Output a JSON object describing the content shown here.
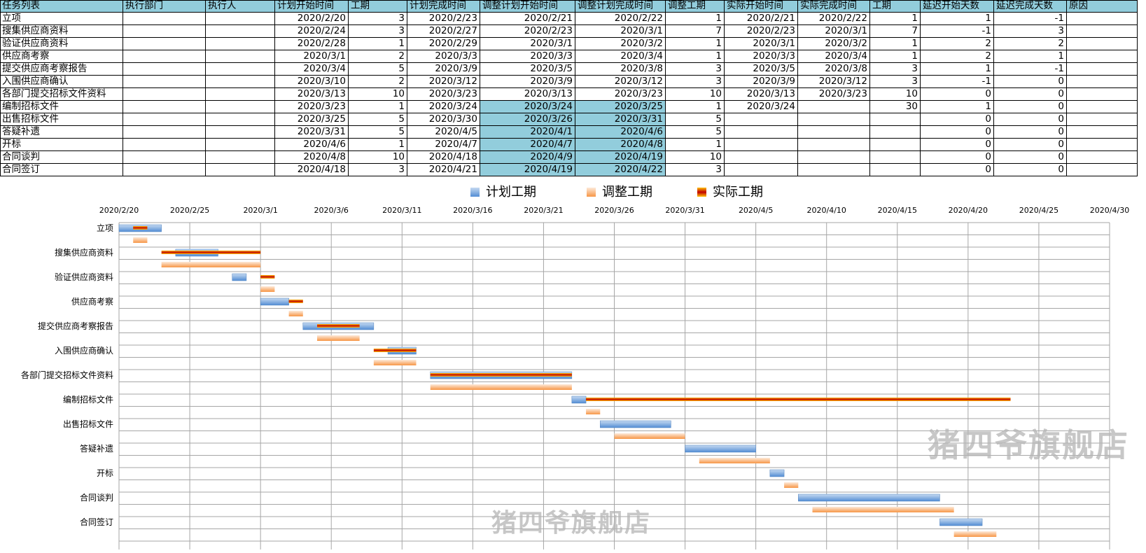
{
  "table": {
    "headers": [
      "任务列表",
      "执行部门",
      "执行人",
      "计划开始时间",
      "工期",
      "计划完成时间",
      "调整计划开始时间",
      "调整计划完成时间",
      "调整工期",
      "实际开始时间",
      "实际完成时间",
      "工期",
      "延迟开始天数",
      "延迟完成天数",
      "原因"
    ],
    "rows": [
      [
        "立项",
        "",
        "",
        "2020/2/20",
        "3",
        "2020/2/23",
        "2020/2/21",
        "2020/2/22",
        "1",
        "2020/2/21",
        "2020/2/22",
        "1",
        "1",
        "-1",
        ""
      ],
      [
        "搜集供应商资料",
        "",
        "",
        "2020/2/24",
        "3",
        "2020/2/27",
        "2020/2/23",
        "2020/3/1",
        "7",
        "2020/2/23",
        "2020/3/1",
        "7",
        "-1",
        "3",
        ""
      ],
      [
        "验证供应商资料",
        "",
        "",
        "2020/2/28",
        "1",
        "2020/2/29",
        "2020/3/1",
        "2020/3/2",
        "1",
        "2020/3/1",
        "2020/3/2",
        "1",
        "2",
        "2",
        ""
      ],
      [
        "供应商考察",
        "",
        "",
        "2020/3/1",
        "2",
        "2020/3/3",
        "2020/3/3",
        "2020/3/4",
        "1",
        "2020/3/3",
        "2020/3/4",
        "1",
        "2",
        "1",
        ""
      ],
      [
        "提交供应商考察报告",
        "",
        "",
        "2020/3/4",
        "5",
        "2020/3/9",
        "2020/3/5",
        "2020/3/8",
        "3",
        "2020/3/5",
        "2020/3/8",
        "3",
        "1",
        "-1",
        ""
      ],
      [
        "入围供应商确认",
        "",
        "",
        "2020/3/10",
        "2",
        "2020/3/12",
        "2020/3/9",
        "2020/3/12",
        "3",
        "2020/3/9",
        "2020/3/12",
        "3",
        "-1",
        "0",
        ""
      ],
      [
        "各部门提交招标文件资料",
        "",
        "",
        "2020/3/13",
        "10",
        "2020/3/23",
        "2020/3/13",
        "2020/3/23",
        "10",
        "2020/3/13",
        "2020/3/23",
        "10",
        "0",
        "0",
        ""
      ],
      [
        "编制招标文件",
        "",
        "",
        "2020/3/23",
        "1",
        "2020/3/24",
        "2020/3/24",
        "2020/3/25",
        "1",
        "2020/3/24",
        "",
        "30",
        "1",
        "0",
        ""
      ],
      [
        "出售招标文件",
        "",
        "",
        "2020/3/25",
        "5",
        "2020/3/30",
        "2020/3/26",
        "2020/3/31",
        "5",
        "",
        "",
        "",
        "0",
        "0",
        ""
      ],
      [
        "答疑补遗",
        "",
        "",
        "2020/3/31",
        "5",
        "2020/4/5",
        "2020/4/1",
        "2020/4/6",
        "5",
        "",
        "",
        "",
        "0",
        "0",
        ""
      ],
      [
        "开标",
        "",
        "",
        "2020/4/6",
        "1",
        "2020/4/7",
        "2020/4/7",
        "2020/4/8",
        "1",
        "",
        "",
        "",
        "0",
        "0",
        ""
      ],
      [
        "合同谈判",
        "",
        "",
        "2020/4/8",
        "10",
        "2020/4/18",
        "2020/4/9",
        "2020/4/19",
        "10",
        "",
        "",
        "",
        "0",
        "0",
        ""
      ],
      [
        "合同签订",
        "",
        "",
        "2020/4/18",
        "3",
        "2020/4/21",
        "2020/4/19",
        "2020/4/22",
        "3",
        "",
        "",
        "",
        "0",
        "0",
        ""
      ]
    ],
    "highlight_color": "#92cddc"
  },
  "chart_data": {
    "type": "gantt",
    "legend": [
      "计划工期",
      "调整工期",
      "实际工期"
    ],
    "legend_position": "top",
    "x_ticks": [
      "2020/2/20",
      "2020/2/25",
      "2020/3/1",
      "2020/3/6",
      "2020/3/11",
      "2020/3/16",
      "2020/3/21",
      "2020/3/26",
      "2020/3/31",
      "2020/4/5",
      "2020/4/10",
      "2020/4/15",
      "2020/4/20",
      "2020/4/25",
      "2020/4/30"
    ],
    "x_range": [
      "2020/2/20",
      "2020/4/30"
    ],
    "x_position": "top",
    "grid": true,
    "tasks": [
      {
        "name": "立项",
        "plan_start": "2020/2/20",
        "plan_days": 3,
        "adj_start": "2020/2/21",
        "adj_days": 1,
        "act_start": "2020/2/21",
        "act_days": 1
      },
      {
        "name": "搜集供应商资料",
        "plan_start": "2020/2/24",
        "plan_days": 3,
        "adj_start": "2020/2/23",
        "adj_days": 7,
        "act_start": "2020/2/23",
        "act_days": 7
      },
      {
        "name": "验证供应商资料",
        "plan_start": "2020/2/28",
        "plan_days": 1,
        "adj_start": "2020/3/1",
        "adj_days": 1,
        "act_start": "2020/3/1",
        "act_days": 1
      },
      {
        "name": "供应商考察",
        "plan_start": "2020/3/1",
        "plan_days": 2,
        "adj_start": "2020/3/3",
        "adj_days": 1,
        "act_start": "2020/3/3",
        "act_days": 1
      },
      {
        "name": "提交供应商考察报告",
        "plan_start": "2020/3/4",
        "plan_days": 5,
        "adj_start": "2020/3/5",
        "adj_days": 3,
        "act_start": "2020/3/5",
        "act_days": 3
      },
      {
        "name": "入围供应商确认",
        "plan_start": "2020/3/10",
        "plan_days": 2,
        "adj_start": "2020/3/9",
        "adj_days": 3,
        "act_start": "2020/3/9",
        "act_days": 3
      },
      {
        "name": "各部门提交招标文件资料",
        "plan_start": "2020/3/13",
        "plan_days": 10,
        "adj_start": "2020/3/13",
        "adj_days": 10,
        "act_start": "2020/3/13",
        "act_days": 10
      },
      {
        "name": "编制招标文件",
        "plan_start": "2020/3/23",
        "plan_days": 1,
        "adj_start": "2020/3/24",
        "adj_days": 1,
        "act_start": "2020/3/24",
        "act_days": 30
      },
      {
        "name": "出售招标文件",
        "plan_start": "2020/3/25",
        "plan_days": 5,
        "adj_start": "2020/3/26",
        "adj_days": 5,
        "act_start": null,
        "act_days": 0
      },
      {
        "name": "答疑补遗",
        "plan_start": "2020/3/31",
        "plan_days": 5,
        "adj_start": "2020/4/1",
        "adj_days": 5,
        "act_start": null,
        "act_days": 0
      },
      {
        "name": "开标",
        "plan_start": "2020/4/6",
        "plan_days": 1,
        "adj_start": "2020/4/7",
        "adj_days": 1,
        "act_start": null,
        "act_days": 0
      },
      {
        "name": "合同谈判",
        "plan_start": "2020/4/8",
        "plan_days": 10,
        "adj_start": "2020/4/9",
        "adj_days": 10,
        "act_start": null,
        "act_days": 0
      },
      {
        "name": "合同签订",
        "plan_start": "2020/4/18",
        "plan_days": 3,
        "adj_start": "2020/4/19",
        "adj_days": 3,
        "act_start": null,
        "act_days": 0
      }
    ],
    "colors": {
      "plan": "#8db4e2",
      "adjust": "#fac090",
      "actual_outer": "#ffc000",
      "actual_inner": "#c00000"
    }
  },
  "watermark": {
    "text": "猪四爷旗舰店"
  }
}
